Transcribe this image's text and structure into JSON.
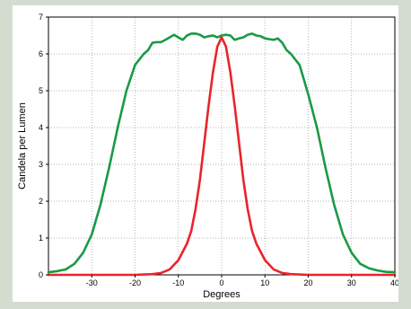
{
  "chart_data": {
    "type": "line",
    "title": "",
    "xlabel": "Degrees",
    "ylabel": "Candela per Lumen",
    "xlim": [
      -40,
      40
    ],
    "ylim": [
      0,
      7
    ],
    "xticks": [
      -30,
      -20,
      -10,
      0,
      10,
      20,
      30,
      40
    ],
    "yticks": [
      0,
      1,
      2,
      3,
      4,
      5,
      6,
      7
    ],
    "grid": true,
    "series": [
      {
        "color": "#1a9a44",
        "x": [
          -40,
          -38,
          -36,
          -34,
          -32,
          -30,
          -28,
          -26,
          -24,
          -22,
          -20,
          -19,
          -18,
          -17,
          -16,
          -15,
          -14,
          -13,
          -12,
          -11,
          -10,
          -9,
          -8,
          -7,
          -6,
          -5,
          -4,
          -3,
          -2,
          -1,
          0,
          1,
          2,
          3,
          4,
          5,
          6,
          7,
          8,
          9,
          10,
          11,
          12,
          13,
          14,
          15,
          16,
          17,
          18,
          19,
          20,
          22,
          24,
          26,
          28,
          30,
          32,
          34,
          36,
          38,
          40
        ],
        "y": [
          0.07,
          0.1,
          0.15,
          0.3,
          0.6,
          1.1,
          1.9,
          2.9,
          4.0,
          5.0,
          5.7,
          5.85,
          6.0,
          6.1,
          6.3,
          6.32,
          6.32,
          6.38,
          6.45,
          6.52,
          6.45,
          6.38,
          6.5,
          6.55,
          6.55,
          6.52,
          6.45,
          6.48,
          6.5,
          6.45,
          6.5,
          6.52,
          6.5,
          6.38,
          6.42,
          6.45,
          6.52,
          6.55,
          6.5,
          6.48,
          6.42,
          6.4,
          6.38,
          6.42,
          6.3,
          6.1,
          6.0,
          5.85,
          5.7,
          5.3,
          4.9,
          4.0,
          2.9,
          1.9,
          1.1,
          0.6,
          0.3,
          0.18,
          0.12,
          0.08,
          0.07
        ]
      },
      {
        "color": "#e8242b",
        "x": [
          -40,
          -20,
          -16,
          -14,
          -12,
          -10,
          -8,
          -7,
          -6,
          -5,
          -4,
          -3,
          -2,
          -1,
          0,
          1,
          2,
          3,
          4,
          5,
          6,
          7,
          8,
          10,
          12,
          14,
          16,
          20,
          40
        ],
        "y": [
          0,
          0,
          0.02,
          0.05,
          0.15,
          0.4,
          0.85,
          1.2,
          1.8,
          2.6,
          3.6,
          4.6,
          5.5,
          6.2,
          6.45,
          6.2,
          5.5,
          4.6,
          3.6,
          2.6,
          1.8,
          1.2,
          0.85,
          0.4,
          0.15,
          0.05,
          0.02,
          0,
          0
        ]
      }
    ]
  }
}
